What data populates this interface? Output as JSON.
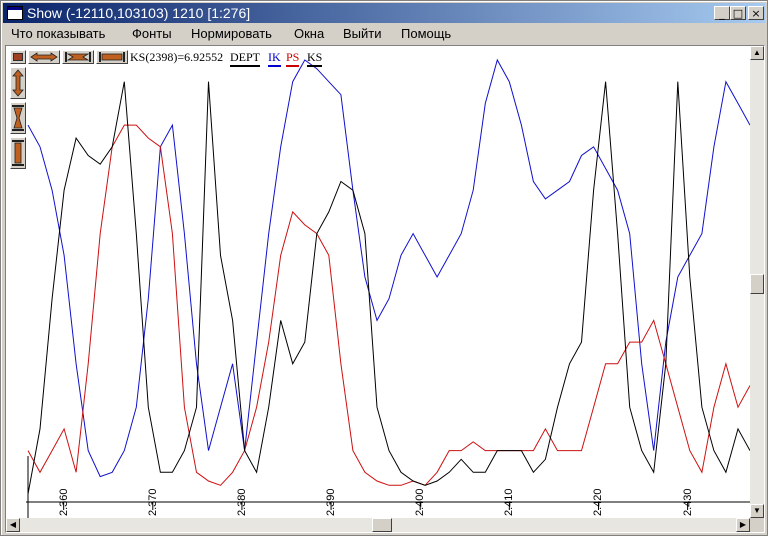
{
  "window": {
    "title": "Show (-12110,103103) 1210 [1:276]",
    "icon": "app-window-icon",
    "controls": {
      "minimize": "_",
      "maximize": "□",
      "close": "×"
    }
  },
  "menu": [
    {
      "label": "Что показывать"
    },
    {
      "label": "Фонты"
    },
    {
      "label": "Нормировать"
    },
    {
      "label": "Окна"
    },
    {
      "label": "Выйти"
    },
    {
      "label": "Помощь"
    }
  ],
  "toolbar": {
    "icons": [
      "zoom-out-both-icon",
      "stretch-horizontal-icon",
      "shrink-horizontal-icon",
      "expand-horizontal-icon",
      "stretch-vertical-icon",
      "shrink-vertical-icon",
      "expand-vertical-icon"
    ]
  },
  "readout": "KS(2398)=6.92552",
  "curves_legend": [
    {
      "name": "DEPT",
      "color": "#000000"
    },
    {
      "name": "IK",
      "color": "#0000cc"
    },
    {
      "name": "PS",
      "color": "#cc0000"
    },
    {
      "name": "KS",
      "color": "#000000"
    }
  ],
  "chart_data": {
    "type": "line",
    "x_ticks": [
      "2.360",
      "2.370",
      "2.380",
      "2.390",
      "2.400",
      "2.410",
      "2.420",
      "2.430"
    ],
    "series": [
      {
        "name": "IK",
        "color": "#1010cc",
        "values": [
          0.85,
          0.8,
          0.7,
          0.55,
          0.3,
          0.1,
          0.04,
          0.05,
          0.1,
          0.2,
          0.45,
          0.8,
          0.85,
          0.6,
          0.3,
          0.1,
          0.2,
          0.3,
          0.1,
          0.35,
          0.6,
          0.8,
          0.95,
          1.0,
          0.98,
          0.95,
          0.92,
          0.7,
          0.5,
          0.4,
          0.45,
          0.55,
          0.6,
          0.55,
          0.5,
          0.55,
          0.6,
          0.7,
          0.9,
          1.0,
          0.95,
          0.85,
          0.72,
          0.68,
          0.7,
          0.72,
          0.78,
          0.8,
          0.75,
          0.7,
          0.6,
          0.3,
          0.1,
          0.35,
          0.5,
          0.55,
          0.6,
          0.8,
          0.95,
          0.9,
          0.85
        ]
      },
      {
        "name": "PS",
        "color": "#cc1010",
        "values": [
          0.1,
          0.05,
          0.1,
          0.15,
          0.05,
          0.3,
          0.6,
          0.8,
          0.85,
          0.85,
          0.82,
          0.8,
          0.6,
          0.2,
          0.05,
          0.03,
          0.02,
          0.05,
          0.1,
          0.2,
          0.35,
          0.55,
          0.65,
          0.62,
          0.6,
          0.55,
          0.3,
          0.1,
          0.05,
          0.03,
          0.02,
          0.02,
          0.03,
          0.02,
          0.05,
          0.1,
          0.1,
          0.12,
          0.1,
          0.1,
          0.1,
          0.1,
          0.1,
          0.15,
          0.1,
          0.1,
          0.1,
          0.2,
          0.3,
          0.3,
          0.35,
          0.35,
          0.4,
          0.3,
          0.2,
          0.1,
          0.05,
          0.2,
          0.3,
          0.2,
          0.25
        ]
      },
      {
        "name": "KS",
        "color": "#000000",
        "values": [
          0.0,
          0.15,
          0.45,
          0.7,
          0.82,
          0.78,
          0.76,
          0.8,
          0.95,
          0.6,
          0.2,
          0.05,
          0.05,
          0.1,
          0.2,
          0.95,
          0.55,
          0.4,
          0.1,
          0.05,
          0.2,
          0.4,
          0.3,
          0.35,
          0.6,
          0.65,
          0.72,
          0.7,
          0.6,
          0.2,
          0.1,
          0.05,
          0.03,
          0.02,
          0.03,
          0.05,
          0.08,
          0.05,
          0.05,
          0.1,
          0.1,
          0.1,
          0.05,
          0.08,
          0.2,
          0.3,
          0.35,
          0.7,
          0.95,
          0.6,
          0.2,
          0.1,
          0.05,
          0.3,
          0.95,
          0.5,
          0.2,
          0.1,
          0.05,
          0.15,
          0.1
        ]
      }
    ],
    "xlim": [
      2.356,
      2.437
    ],
    "grid": false
  }
}
